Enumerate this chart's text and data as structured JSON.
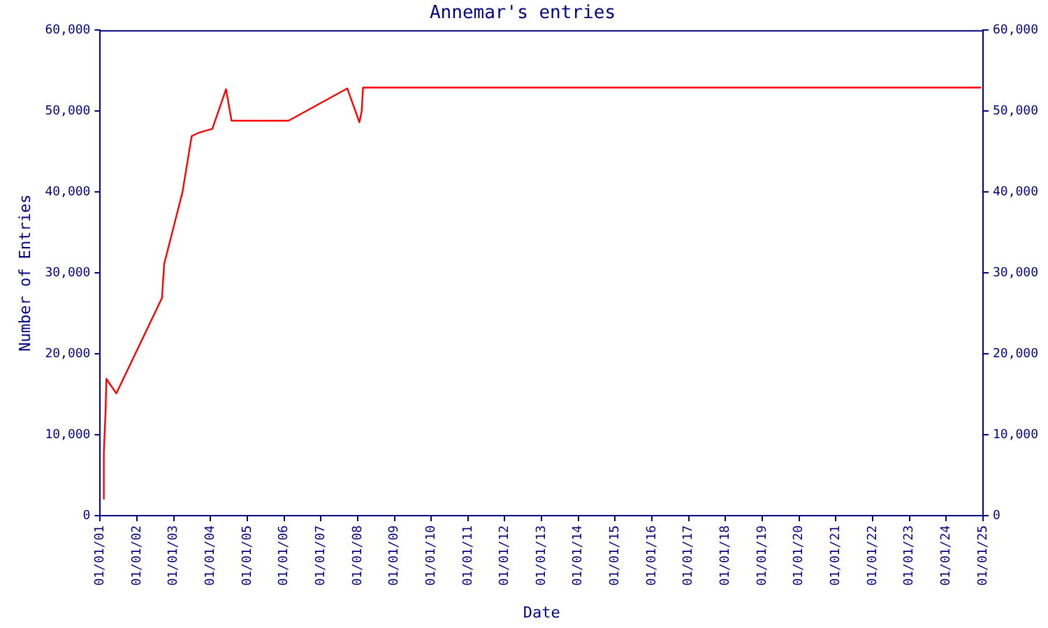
{
  "chart_data": {
    "type": "line",
    "title": "Annemar's entries",
    "xlabel": "Date",
    "ylabel": "Number of Entries",
    "x": [
      "2001-02-06",
      "2001-02-06",
      "2001-02-24",
      "2001-03-03",
      "2001-06-10",
      "2002-09-06",
      "2002-09-28",
      "2003-03-29",
      "2003-06-28",
      "2003-09-02",
      "2004-01-19",
      "2004-06-03",
      "2004-07-28",
      "2006-02-14",
      "2007-09-20",
      "2008-01-19",
      "2008-02-10",
      "2008-02-24",
      "2024-12-13"
    ],
    "series": [
      {
        "color": "#ff0000",
        "values": [
          2000,
          7800,
          13200,
          16900,
          15100,
          26900,
          31100,
          40000,
          46900,
          47300,
          47800,
          52700,
          48800,
          48800,
          52800,
          48600,
          50000,
          52900,
          52900
        ]
      }
    ],
    "xlim": [
      "2001-01-01",
      "2025-01-01"
    ],
    "xticks": [
      {
        "value": "2001-01-01",
        "label": "01/01/01"
      },
      {
        "value": "2002-01-01",
        "label": "01/01/02"
      },
      {
        "value": "2003-01-01",
        "label": "01/01/03"
      },
      {
        "value": "2004-01-01",
        "label": "01/01/04"
      },
      {
        "value": "2005-01-01",
        "label": "01/01/05"
      },
      {
        "value": "2006-01-01",
        "label": "01/01/06"
      },
      {
        "value": "2007-01-01",
        "label": "01/01/07"
      },
      {
        "value": "2008-01-01",
        "label": "01/01/08"
      },
      {
        "value": "2009-01-01",
        "label": "01/01/09"
      },
      {
        "value": "2010-01-01",
        "label": "01/01/10"
      },
      {
        "value": "2011-01-01",
        "label": "01/01/11"
      },
      {
        "value": "2012-01-01",
        "label": "01/01/12"
      },
      {
        "value": "2013-01-01",
        "label": "01/01/13"
      },
      {
        "value": "2014-01-01",
        "label": "01/01/14"
      },
      {
        "value": "2015-01-01",
        "label": "01/01/15"
      },
      {
        "value": "2016-01-01",
        "label": "01/01/16"
      },
      {
        "value": "2017-01-01",
        "label": "01/01/17"
      },
      {
        "value": "2018-01-01",
        "label": "01/01/18"
      },
      {
        "value": "2019-01-01",
        "label": "01/01/19"
      },
      {
        "value": "2020-01-01",
        "label": "01/01/20"
      },
      {
        "value": "2021-01-01",
        "label": "01/01/21"
      },
      {
        "value": "2022-01-01",
        "label": "01/01/22"
      },
      {
        "value": "2023-01-01",
        "label": "01/01/23"
      },
      {
        "value": "2024-01-01",
        "label": "01/01/24"
      },
      {
        "value": "2025-01-01",
        "label": "01/01/25"
      }
    ],
    "ylim": [
      0,
      60000
    ],
    "yticks": [
      0,
      {
        "value": 10000,
        "label": "10,000"
      },
      {
        "value": 20000,
        "label": "20,000"
      },
      {
        "value": 30000,
        "label": "30,000"
      },
      {
        "value": 40000,
        "label": "40,000"
      },
      {
        "value": 50000,
        "label": "50,000"
      },
      {
        "value": 60000,
        "label": "60,000"
      }
    ],
    "y2lim": [
      0,
      60000
    ],
    "y2ticks": [
      0,
      {
        "value": 10000,
        "label": "10,000"
      },
      {
        "value": 20000,
        "label": "20,000"
      },
      {
        "value": 30000,
        "label": "30,000"
      },
      {
        "value": 40000,
        "label": "40,000"
      },
      {
        "value": 50000,
        "label": "50,000"
      },
      {
        "value": 60000,
        "label": "60,000"
      }
    ],
    "grid": false,
    "legend": false,
    "marker": "none",
    "line_style": "solid"
  }
}
